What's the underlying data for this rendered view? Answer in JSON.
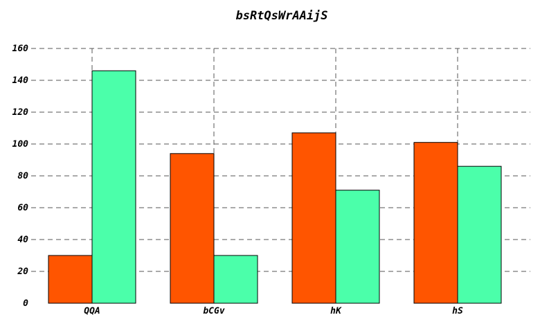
{
  "chart_data": {
    "type": "bar",
    "title": "bsRtQsWrAAijS",
    "xlabel": "",
    "ylabel": "",
    "categories": [
      "QQA",
      "bCGv",
      "hK",
      "hS"
    ],
    "series": [
      {
        "values": [
          30,
          94,
          107,
          101
        ],
        "color": "#ff5500"
      },
      {
        "values": [
          146,
          30,
          71,
          86
        ],
        "color": "#4bffaa"
      }
    ],
    "ylim": [
      0,
      160
    ],
    "yticks": [
      0,
      20,
      40,
      60,
      80,
      100,
      120,
      140,
      160
    ],
    "grid": true,
    "legend": "none"
  }
}
